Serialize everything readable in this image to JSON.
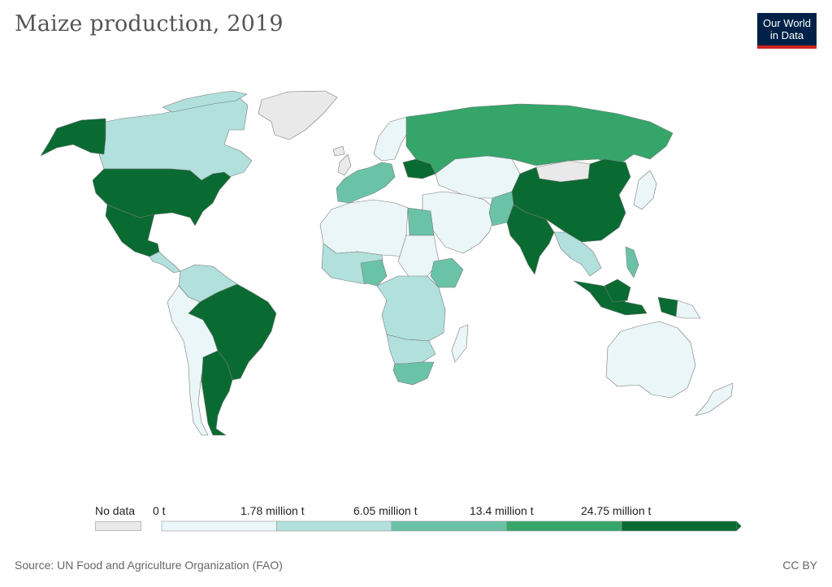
{
  "title": "Maize production, 2019",
  "logo": {
    "line1": "Our World",
    "line2": "in Data",
    "bg": "#002147",
    "accent": "#ce261e"
  },
  "legend": {
    "no_data_label": "No data",
    "no_data_color": "#e9e9e9",
    "bins": [
      {
        "label": "0 t",
        "color": "#eaf6f8"
      },
      {
        "label": "1.78 million t",
        "color": "#b1e0dd"
      },
      {
        "label": "6.05 million t",
        "color": "#6bc3a7"
      },
      {
        "label": "13.4 million t",
        "color": "#35a56a"
      },
      {
        "label": "24.75 million t",
        "color": "#0a6b32"
      }
    ]
  },
  "source": "Source: UN Food and Agriculture Organization (FAO)",
  "license": "CC BY",
  "regions": [
    {
      "name": "United States",
      "level": 4
    },
    {
      "name": "Mexico",
      "level": 4
    },
    {
      "name": "Brazil",
      "level": 4
    },
    {
      "name": "Argentina",
      "level": 4
    },
    {
      "name": "China",
      "level": 4
    },
    {
      "name": "India",
      "level": 4
    },
    {
      "name": "Indonesia",
      "level": 4
    },
    {
      "name": "Ukraine",
      "level": 4
    },
    {
      "name": "Russia",
      "level": 3
    },
    {
      "name": "Canada",
      "level": 1
    },
    {
      "name": "Alaska",
      "level": 4
    },
    {
      "name": "Egypt",
      "level": 2
    },
    {
      "name": "Nigeria",
      "level": 2
    },
    {
      "name": "Ethiopia",
      "level": 2
    },
    {
      "name": "South Africa",
      "level": 2
    },
    {
      "name": "Philippines",
      "level": 2
    },
    {
      "name": "Pakistan",
      "level": 2
    },
    {
      "name": "Greenland",
      "level": -1
    },
    {
      "name": "Mongolia",
      "level": -1
    },
    {
      "name": "Australia",
      "level": 0
    },
    {
      "name": "Kazakhstan",
      "level": 0
    },
    {
      "name": "Saudi Arabia",
      "level": 0
    }
  ]
}
